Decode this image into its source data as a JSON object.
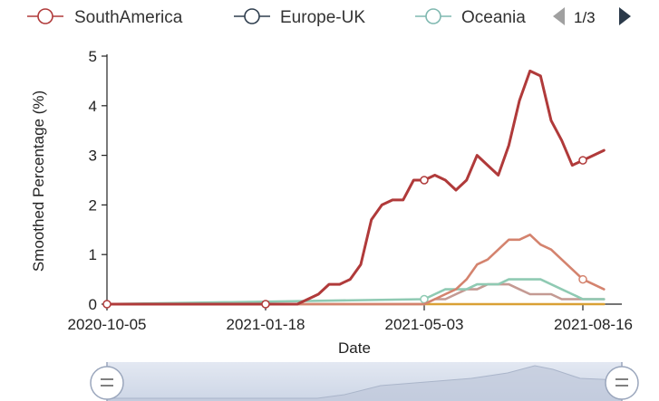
{
  "legend": {
    "items": [
      {
        "label": "SouthAmerica",
        "color": "#b03a3a"
      },
      {
        "label": "Europe-UK",
        "color": "#2f3e4e"
      },
      {
        "label": "Oceania",
        "color": "#7fb8b0"
      }
    ],
    "pager": {
      "text": "1/3",
      "prev_icon": "triangle-left-icon",
      "next_icon": "triangle-right-icon",
      "prev_color": "#a0a0a0",
      "next_color": "#2b3a4a"
    }
  },
  "navigator": {
    "left_icon": "drag-handle-icon",
    "right_icon": "drag-handle-icon"
  },
  "chart_data": {
    "type": "line",
    "xlabel": "Date",
    "ylabel": "Smoothed Percentage (%)",
    "x_ticks": [
      "2020-10-05",
      "2021-01-18",
      "2021-05-03",
      "2021-08-16"
    ],
    "y_ticks": [
      "0",
      "1",
      "2",
      "3",
      "4",
      "5"
    ],
    "ylim": [
      0,
      5
    ],
    "xlim": [
      "2020-10-05",
      "2021-09-06"
    ],
    "grid": false,
    "legend_position": "top",
    "series": [
      {
        "name": "SouthAmerica",
        "color": "#b03a3a",
        "points": [
          [
            "2020-10-05",
            0
          ],
          [
            "2021-01-18",
            0
          ],
          [
            "2021-02-08",
            0
          ],
          [
            "2021-02-15",
            0.1
          ],
          [
            "2021-02-22",
            0.2
          ],
          [
            "2021-03-01",
            0.4
          ],
          [
            "2021-03-08",
            0.4
          ],
          [
            "2021-03-15",
            0.5
          ],
          [
            "2021-03-22",
            0.8
          ],
          [
            "2021-03-29",
            1.7
          ],
          [
            "2021-04-05",
            2.0
          ],
          [
            "2021-04-12",
            2.1
          ],
          [
            "2021-04-19",
            2.1
          ],
          [
            "2021-04-26",
            2.5
          ],
          [
            "2021-05-03",
            2.5
          ],
          [
            "2021-05-10",
            2.6
          ],
          [
            "2021-05-17",
            2.5
          ],
          [
            "2021-05-24",
            2.3
          ],
          [
            "2021-05-31",
            2.5
          ],
          [
            "2021-06-07",
            3.0
          ],
          [
            "2021-06-14",
            2.8
          ],
          [
            "2021-06-21",
            2.6
          ],
          [
            "2021-06-28",
            3.2
          ],
          [
            "2021-07-05",
            4.1
          ],
          [
            "2021-07-12",
            4.7
          ],
          [
            "2021-07-19",
            4.6
          ],
          [
            "2021-07-26",
            3.7
          ],
          [
            "2021-08-02",
            3.3
          ],
          [
            "2021-08-09",
            2.8
          ],
          [
            "2021-08-16",
            2.9
          ],
          [
            "2021-08-23",
            3.0
          ],
          [
            "2021-08-30",
            3.1
          ]
        ],
        "markers": [
          "2020-10-05",
          "2021-01-18",
          "2021-05-03",
          "2021-08-16"
        ]
      },
      {
        "name": "Europe-UK",
        "color": "#d4836e",
        "points": [
          [
            "2020-10-05",
            0
          ],
          [
            "2021-05-03",
            0
          ],
          [
            "2021-05-10",
            0.1
          ],
          [
            "2021-05-17",
            0.2
          ],
          [
            "2021-05-24",
            0.3
          ],
          [
            "2021-05-31",
            0.5
          ],
          [
            "2021-06-07",
            0.8
          ],
          [
            "2021-06-14",
            0.9
          ],
          [
            "2021-06-21",
            1.1
          ],
          [
            "2021-06-28",
            1.3
          ],
          [
            "2021-07-05",
            1.3
          ],
          [
            "2021-07-12",
            1.4
          ],
          [
            "2021-07-19",
            1.2
          ],
          [
            "2021-07-26",
            1.1
          ],
          [
            "2021-08-02",
            0.9
          ],
          [
            "2021-08-09",
            0.7
          ],
          [
            "2021-08-16",
            0.5
          ],
          [
            "2021-08-23",
            0.4
          ],
          [
            "2021-08-30",
            0.3
          ]
        ],
        "markers": [
          "2021-08-16"
        ]
      },
      {
        "name": "Oceania",
        "color": "#8fcab3",
        "points": [
          [
            "2020-10-05",
            0
          ],
          [
            "2021-05-03",
            0.1
          ],
          [
            "2021-05-10",
            0.2
          ],
          [
            "2021-05-17",
            0.3
          ],
          [
            "2021-05-24",
            0.3
          ],
          [
            "2021-05-31",
            0.3
          ],
          [
            "2021-06-07",
            0.4
          ],
          [
            "2021-06-14",
            0.4
          ],
          [
            "2021-06-21",
            0.4
          ],
          [
            "2021-06-28",
            0.5
          ],
          [
            "2021-07-05",
            0.5
          ],
          [
            "2021-07-12",
            0.5
          ],
          [
            "2021-07-19",
            0.5
          ],
          [
            "2021-07-26",
            0.4
          ],
          [
            "2021-08-02",
            0.3
          ],
          [
            "2021-08-09",
            0.2
          ],
          [
            "2021-08-16",
            0.1
          ],
          [
            "2021-08-23",
            0.1
          ],
          [
            "2021-08-30",
            0.1
          ]
        ],
        "markers": [
          "2021-05-03"
        ]
      },
      {
        "name": "",
        "color": "#c49a93",
        "points": [
          [
            "2020-10-05",
            0
          ],
          [
            "2021-05-03",
            0
          ],
          [
            "2021-05-10",
            0.1
          ],
          [
            "2021-05-17",
            0.1
          ],
          [
            "2021-05-24",
            0.2
          ],
          [
            "2021-05-31",
            0.3
          ],
          [
            "2021-06-07",
            0.3
          ],
          [
            "2021-06-14",
            0.4
          ],
          [
            "2021-06-21",
            0.4
          ],
          [
            "2021-06-28",
            0.4
          ],
          [
            "2021-07-05",
            0.3
          ],
          [
            "2021-07-12",
            0.2
          ],
          [
            "2021-07-19",
            0.2
          ],
          [
            "2021-07-26",
            0.2
          ],
          [
            "2021-08-02",
            0.1
          ],
          [
            "2021-08-09",
            0.1
          ],
          [
            "2021-08-16",
            0.1
          ],
          [
            "2021-08-23",
            0.1
          ],
          [
            "2021-08-30",
            0.1
          ]
        ],
        "markers": []
      },
      {
        "name": "",
        "color": "#d9a035",
        "points": [
          [
            "2020-10-05",
            0
          ],
          [
            "2021-08-30",
            0
          ]
        ],
        "markers": []
      }
    ]
  }
}
